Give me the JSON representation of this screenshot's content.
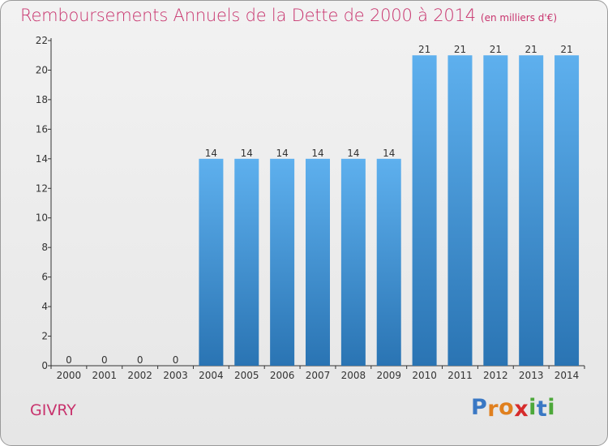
{
  "title": "Remboursements Annuels de la Dette de 2000 à 2014",
  "unit": "(en milliers d'€)",
  "commune": "GIVRY",
  "logo": {
    "letters": [
      "P",
      "r",
      "o",
      "x",
      "i",
      "t",
      "i"
    ],
    "colors": [
      "#3a78c4",
      "#e0801f",
      "#e0801f",
      "#d62c2c",
      "#4da83a",
      "#3a78c4",
      "#4da83a"
    ]
  },
  "colors": {
    "accent": "#c8336d",
    "bar_top": "#5eb0ee",
    "bar_bottom": "#2a74b3"
  },
  "chart_data": {
    "type": "bar",
    "title": "Remboursements Annuels de la Dette de 2000 à 2014",
    "ylabel": "",
    "xlabel": "",
    "ylim": [
      0,
      22
    ],
    "yticks": [
      0,
      2,
      4,
      6,
      8,
      10,
      12,
      14,
      16,
      18,
      20,
      22
    ],
    "categories": [
      "2000",
      "2001",
      "2002",
      "2003",
      "2004",
      "2005",
      "2006",
      "2007",
      "2008",
      "2009",
      "2010",
      "2011",
      "2012",
      "2013",
      "2014"
    ],
    "values": [
      0,
      0,
      0,
      0,
      14,
      14,
      14,
      14,
      14,
      14,
      21,
      21,
      21,
      21,
      21
    ],
    "grid": false
  }
}
